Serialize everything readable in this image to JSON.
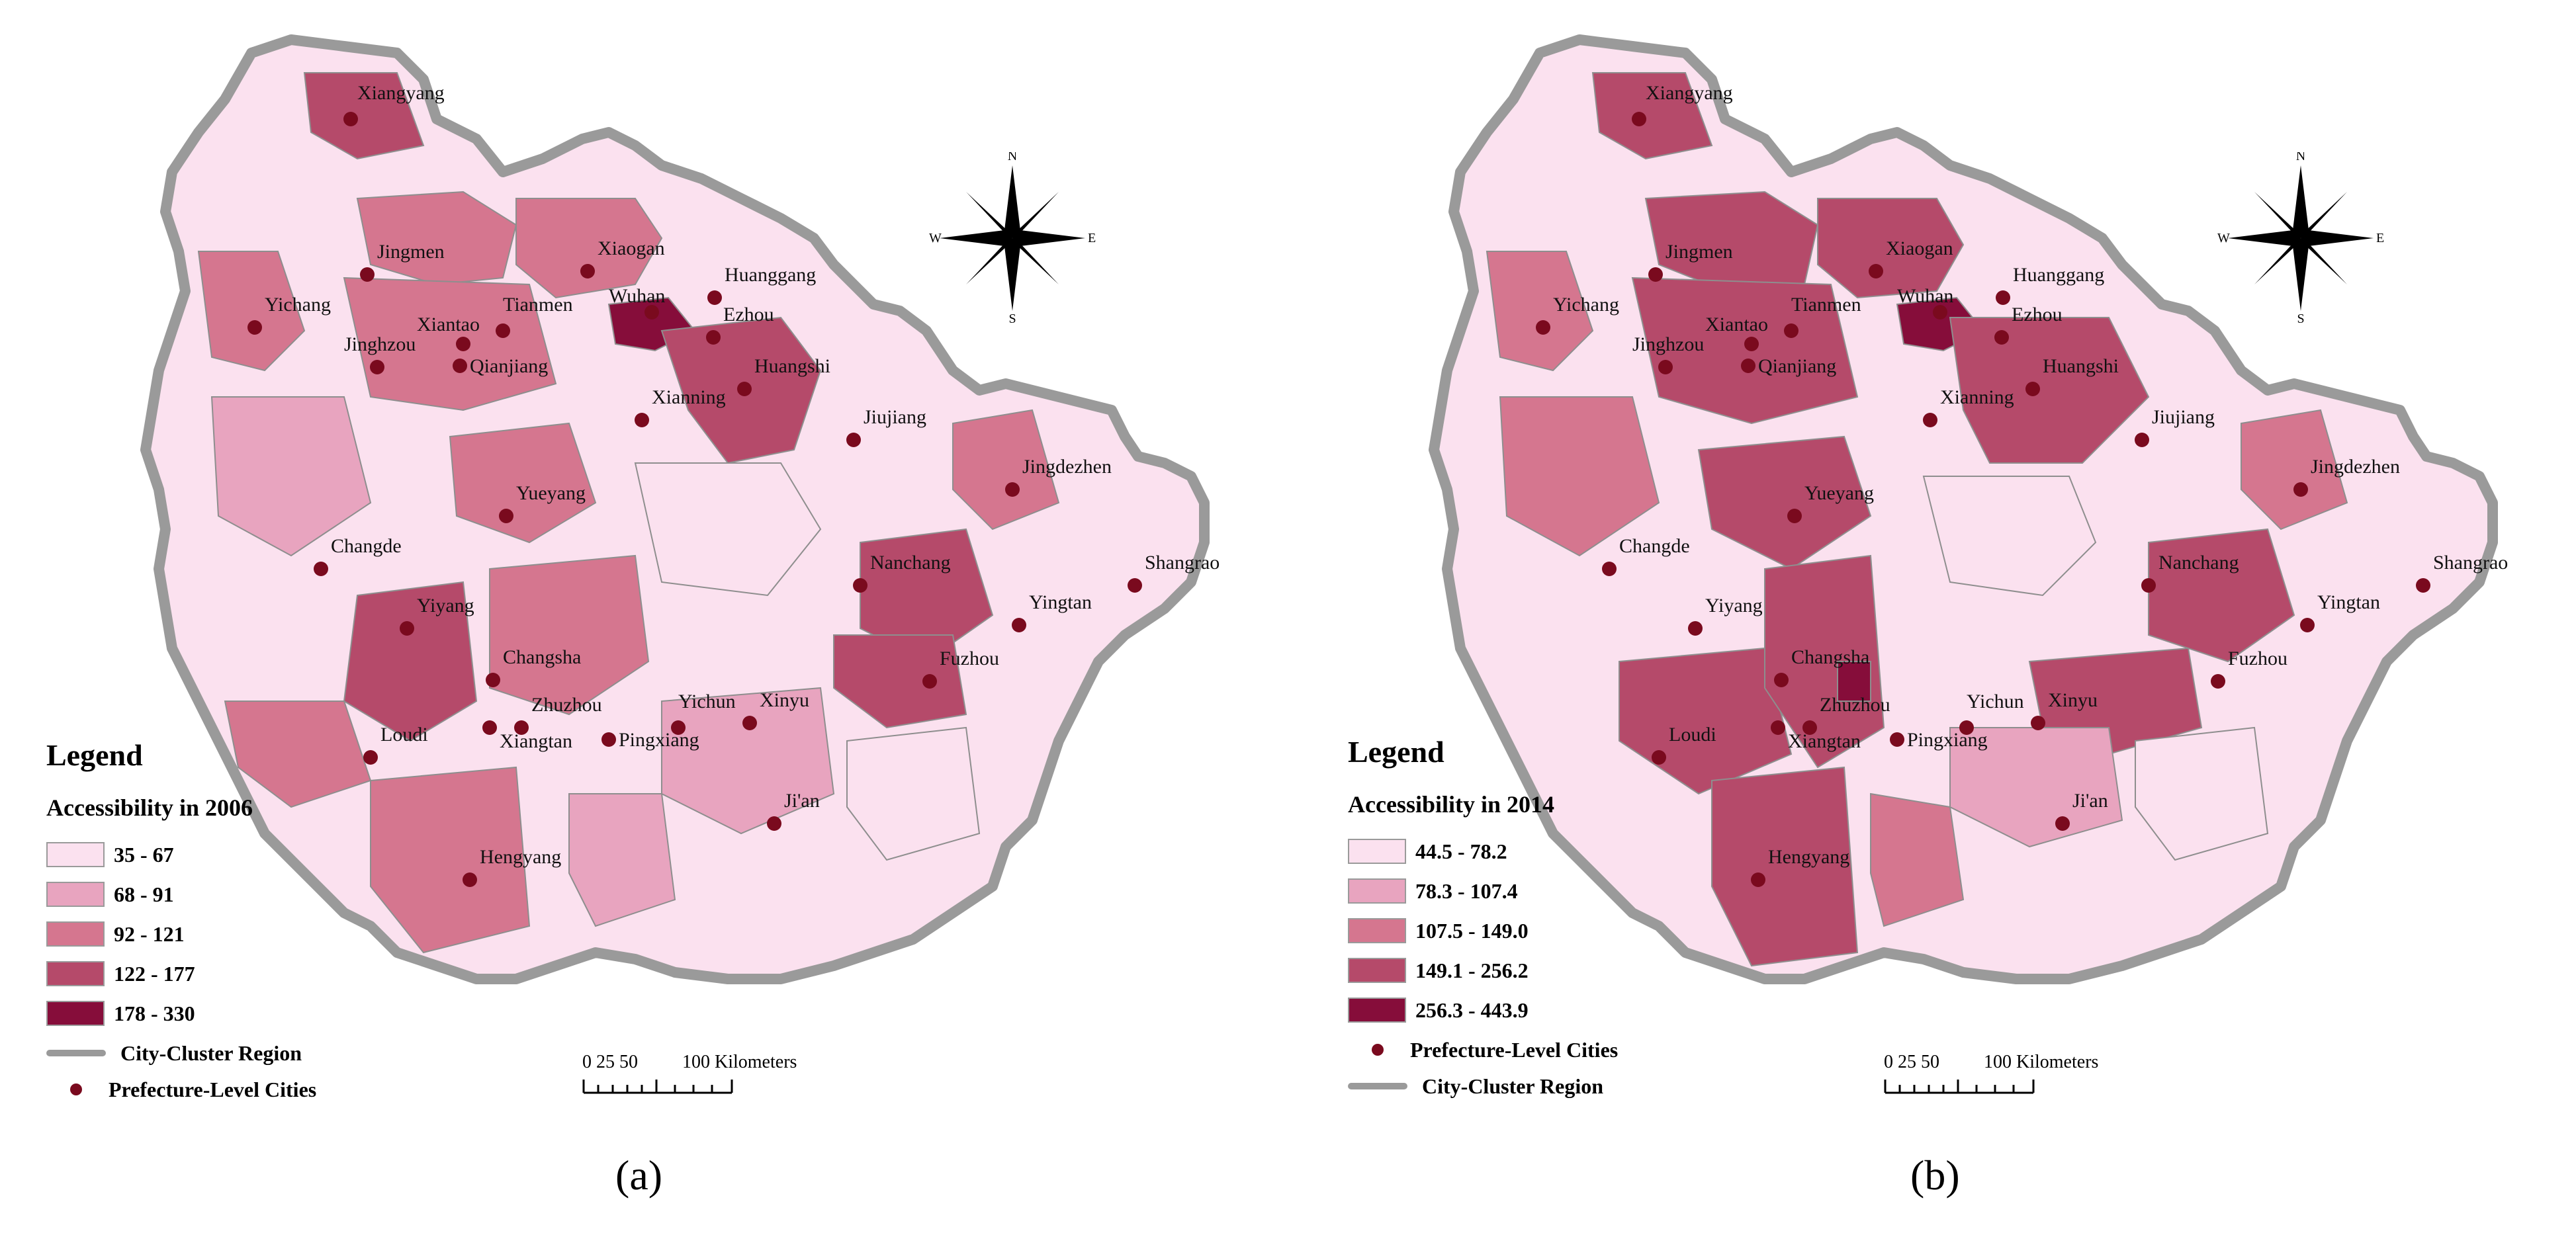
{
  "panels": [
    {
      "id": "a",
      "legend": {
        "title": "Legend",
        "subtitle": "Accessibility in 2006",
        "classes": [
          {
            "label": "35 - 67",
            "color": "#fbe1ef"
          },
          {
            "label": "68 - 91",
            "color": "#e8a4bf"
          },
          {
            "label": "92 - 121",
            "color": "#d5768f"
          },
          {
            "label": "122 - 177",
            "color": "#b54a6a"
          },
          {
            "label": "178 - 330",
            "color": "#860d3a"
          }
        ],
        "region_label": "City-Cluster Region",
        "cities_label": "Prefecture-Level Cities"
      },
      "scale": {
        "ticks": "0 25 50",
        "end": "100 Kilometers"
      },
      "caption": "(a)",
      "compass": {
        "n": "N",
        "s": "S",
        "e": "E",
        "w": "W"
      },
      "cities": [
        "Xiangyang",
        "Jingmen",
        "Xiaogan",
        "Huanggang",
        "Yichang",
        "Tianmen",
        "Wuhan",
        "Ezhou",
        "Xiantao",
        "Jinghzou",
        "Qianjiang",
        "Huangshi",
        "Xianning",
        "Jiujiang",
        "Jingdezhen",
        "Yueyang",
        "Changde",
        "Nanchang",
        "Shangrao",
        "Yiyang",
        "Yingtan",
        "Changsha",
        "Fuzhou",
        "Zhuzhou",
        "Yichun",
        "Xinyu",
        "Loudi",
        "Xiangtan",
        "Pingxiang",
        "Ji'an",
        "Hengyang"
      ]
    },
    {
      "id": "b",
      "legend": {
        "title": "Legend",
        "subtitle": "Accessibility in 2014",
        "classes": [
          {
            "label": "44.5 - 78.2",
            "color": "#fbe1ef"
          },
          {
            "label": "78.3 - 107.4",
            "color": "#e8a4bf"
          },
          {
            "label": "107.5 - 149.0",
            "color": "#d5768f"
          },
          {
            "label": "149.1 - 256.2",
            "color": "#b54a6a"
          },
          {
            "label": "256.3 - 443.9",
            "color": "#860d3a"
          }
        ],
        "region_label": "City-Cluster Region",
        "cities_label": "Prefecture-Level Cities"
      },
      "scale": {
        "ticks": "0 25 50",
        "end": "100 Kilometers"
      },
      "caption": "(b)",
      "compass": {
        "n": "N",
        "s": "S",
        "e": "E",
        "w": "W"
      },
      "cities": [
        "Xiangyang",
        "Jingmen",
        "Xiaogan",
        "Huanggang",
        "Yichang",
        "Tianmen",
        "Wuhan",
        "Ezhou",
        "Xiantao",
        "Jinghzou",
        "Qianjiang",
        "Huangshi",
        "Xianning",
        "Jiujiang",
        "Jingdezhen",
        "Yueyang",
        "Changde",
        "Nanchang",
        "Shangrao",
        "Yiyang",
        "Yingtan",
        "Changsha",
        "Fuzhou",
        "Zhuzhou",
        "Yichun",
        "Xinyu",
        "Loudi",
        "Xiangtan",
        "Pingxiang",
        "Ji'an",
        "Hengyang"
      ]
    }
  ]
}
